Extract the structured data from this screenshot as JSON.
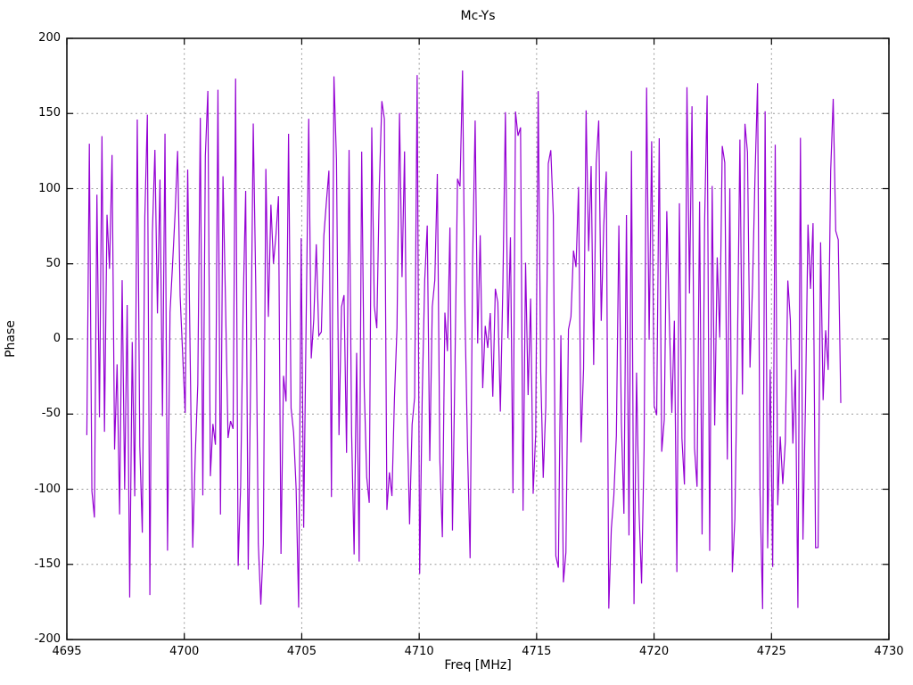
{
  "page": {
    "background": "#ffffff"
  },
  "chart_data": {
    "type": "line",
    "title": "Mc-Ys",
    "xlabel": "Freq [MHz]",
    "ylabel": "Phase",
    "xlim": [
      4695,
      4730
    ],
    "ylim": [
      -200,
      200
    ],
    "x_ticks": [
      4695,
      4700,
      4705,
      4710,
      4715,
      4720,
      4725,
      4730
    ],
    "y_ticks": [
      200,
      150,
      100,
      50,
      0,
      -50,
      -100,
      -150,
      -200
    ],
    "grid": true,
    "legend": false,
    "colors": {
      "line": "#9400d3",
      "grid": "#9c9c9c",
      "border": "#000000",
      "text": "#000000"
    },
    "series": [
      {
        "name": "Phase",
        "color": "#9400d3",
        "x_start": 4695.85,
        "x_end": 4727.95,
        "n_points": 300,
        "y_min": -180,
        "y_max": 180,
        "distribution": "uniform-wrapped-phase-noise",
        "seed": 1357924680
      }
    ]
  }
}
